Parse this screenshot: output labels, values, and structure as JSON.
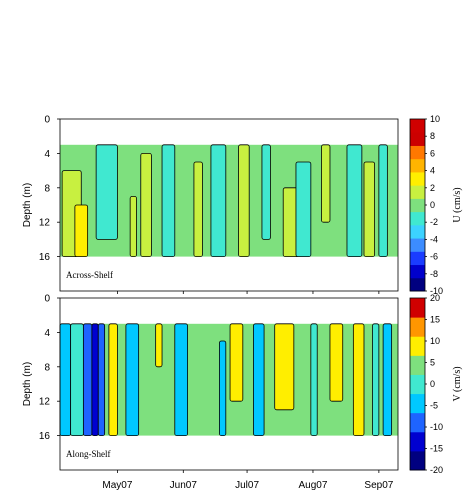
{
  "chart_data": [
    {
      "type": "heatmap",
      "panel_label": "Across-Shelf",
      "ylabel": "Depth (m)",
      "y_ticks": [
        0,
        4,
        8,
        12,
        16
      ],
      "ylim": [
        0,
        20
      ],
      "data_depth_range": [
        3,
        16
      ],
      "x_ticks": [],
      "colorbar": {
        "title": "U (cm/s)",
        "range": [
          -10,
          10
        ],
        "ticks": [
          10,
          8,
          6,
          4,
          2,
          0,
          -2,
          -4,
          -6,
          -8,
          -10
        ],
        "colors": [
          "#000080",
          "#0000cc",
          "#1a3cff",
          "#3c8cff",
          "#3cd2ff",
          "#40e8d0",
          "#7ee07e",
          "#c8f040",
          "#ffee00",
          "#ffb400",
          "#ff7800",
          "#cc0000",
          "#d00000"
        ]
      },
      "background_color": "#7ee07e",
      "bands": [
        {
          "x_start": "2007-04-05",
          "x_end": "2007-04-14",
          "color": "#c8f040",
          "depth": [
            6,
            16
          ]
        },
        {
          "x_start": "2007-04-11",
          "x_end": "2007-04-17",
          "color": "#ffee00",
          "depth": [
            10,
            16
          ]
        },
        {
          "x_start": "2007-04-21",
          "x_end": "2007-05-01",
          "color": "#40e8d0",
          "depth": [
            3,
            14
          ]
        },
        {
          "x_start": "2007-05-07",
          "x_end": "2007-05-10",
          "color": "#c8f040",
          "depth": [
            9,
            16
          ]
        },
        {
          "x_start": "2007-05-12",
          "x_end": "2007-05-17",
          "color": "#c8f040",
          "depth": [
            4,
            16
          ]
        },
        {
          "x_start": "2007-05-22",
          "x_end": "2007-05-28",
          "color": "#40e8d0",
          "depth": [
            3,
            16
          ]
        },
        {
          "x_start": "2007-06-06",
          "x_end": "2007-06-10",
          "color": "#c8f040",
          "depth": [
            5,
            16
          ]
        },
        {
          "x_start": "2007-06-14",
          "x_end": "2007-06-21",
          "color": "#40e8d0",
          "depth": [
            3,
            16
          ]
        },
        {
          "x_start": "2007-06-27",
          "x_end": "2007-07-02",
          "color": "#c8f040",
          "depth": [
            3,
            16
          ]
        },
        {
          "x_start": "2007-07-08",
          "x_end": "2007-07-12",
          "color": "#40e8d0",
          "depth": [
            3,
            14
          ]
        },
        {
          "x_start": "2007-07-18",
          "x_end": "2007-07-28",
          "color": "#c8f040",
          "depth": [
            8,
            16
          ]
        },
        {
          "x_start": "2007-07-24",
          "x_end": "2007-07-31",
          "color": "#40e8d0",
          "depth": [
            5,
            16
          ]
        },
        {
          "x_start": "2007-08-05",
          "x_end": "2007-08-09",
          "color": "#c8f040",
          "depth": [
            3,
            12
          ]
        },
        {
          "x_start": "2007-08-17",
          "x_end": "2007-08-24",
          "color": "#40e8d0",
          "depth": [
            3,
            16
          ]
        },
        {
          "x_start": "2007-08-25",
          "x_end": "2007-08-30",
          "color": "#c8f040",
          "depth": [
            5,
            16
          ]
        },
        {
          "x_start": "2007-09-01",
          "x_end": "2007-09-05",
          "color": "#40e8d0",
          "depth": [
            3,
            16
          ]
        }
      ]
    },
    {
      "type": "heatmap",
      "panel_label": "Along-Shelf",
      "ylabel": "Depth (m)",
      "y_ticks": [
        0,
        4,
        8,
        12,
        16
      ],
      "ylim": [
        0,
        20
      ],
      "data_depth_range": [
        3,
        16
      ],
      "x_ticks": [
        "May07",
        "Jun07",
        "Jul07",
        "Aug07",
        "Sep07"
      ],
      "x_tick_dates": [
        "2007-05-01",
        "2007-06-01",
        "2007-07-01",
        "2007-08-01",
        "2007-09-01"
      ],
      "x_range": [
        "2007-04-04",
        "2007-09-10"
      ],
      "colorbar": {
        "title": "V (cm/s)",
        "range": [
          -20,
          20
        ],
        "ticks": [
          20,
          15,
          10,
          5,
          0,
          -5,
          -10,
          -15,
          -20
        ],
        "colors": [
          "#000080",
          "#0000d0",
          "#1e64ff",
          "#00c8ff",
          "#40e8d0",
          "#7ee07e",
          "#ffee00",
          "#ff9600",
          "#d00000"
        ]
      },
      "background_color": "#7ee07e",
      "bands": [
        {
          "x_start": "2007-04-04",
          "x_end": "2007-04-09",
          "color": "#00c8ff",
          "depth": [
            3,
            16
          ]
        },
        {
          "x_start": "2007-04-09",
          "x_end": "2007-04-15",
          "color": "#40e8d0",
          "depth": [
            3,
            16
          ]
        },
        {
          "x_start": "2007-04-15",
          "x_end": "2007-04-19",
          "color": "#1e64ff",
          "depth": [
            3,
            16
          ]
        },
        {
          "x_start": "2007-04-19",
          "x_end": "2007-04-22",
          "color": "#0000d0",
          "depth": [
            3,
            16
          ]
        },
        {
          "x_start": "2007-04-22",
          "x_end": "2007-04-25",
          "color": "#1e64ff",
          "depth": [
            3,
            16
          ]
        },
        {
          "x_start": "2007-04-27",
          "x_end": "2007-05-01",
          "color": "#ffee00",
          "depth": [
            3,
            16
          ]
        },
        {
          "x_start": "2007-05-05",
          "x_end": "2007-05-11",
          "color": "#00c8ff",
          "depth": [
            3,
            16
          ]
        },
        {
          "x_start": "2007-05-19",
          "x_end": "2007-05-22",
          "color": "#ffee00",
          "depth": [
            3,
            8
          ]
        },
        {
          "x_start": "2007-05-28",
          "x_end": "2007-06-03",
          "color": "#00c8ff",
          "depth": [
            3,
            16
          ]
        },
        {
          "x_start": "2007-06-18",
          "x_end": "2007-06-21",
          "color": "#00c8ff",
          "depth": [
            5,
            16
          ]
        },
        {
          "x_start": "2007-06-23",
          "x_end": "2007-06-29",
          "color": "#ffee00",
          "depth": [
            3,
            12
          ]
        },
        {
          "x_start": "2007-07-04",
          "x_end": "2007-07-09",
          "color": "#00c8ff",
          "depth": [
            3,
            16
          ]
        },
        {
          "x_start": "2007-07-14",
          "x_end": "2007-07-23",
          "color": "#ffee00",
          "depth": [
            3,
            13
          ]
        },
        {
          "x_start": "2007-07-31",
          "x_end": "2007-08-03",
          "color": "#40e8d0",
          "depth": [
            3,
            16
          ]
        },
        {
          "x_start": "2007-08-09",
          "x_end": "2007-08-15",
          "color": "#ffee00",
          "depth": [
            3,
            12
          ]
        },
        {
          "x_start": "2007-08-20",
          "x_end": "2007-08-25",
          "color": "#ffee00",
          "depth": [
            3,
            16
          ]
        },
        {
          "x_start": "2007-08-29",
          "x_end": "2007-09-01",
          "color": "#40e8d0",
          "depth": [
            3,
            16
          ]
        },
        {
          "x_start": "2007-09-03",
          "x_end": "2007-09-07",
          "color": "#00c8ff",
          "depth": [
            3,
            16
          ]
        }
      ]
    }
  ]
}
